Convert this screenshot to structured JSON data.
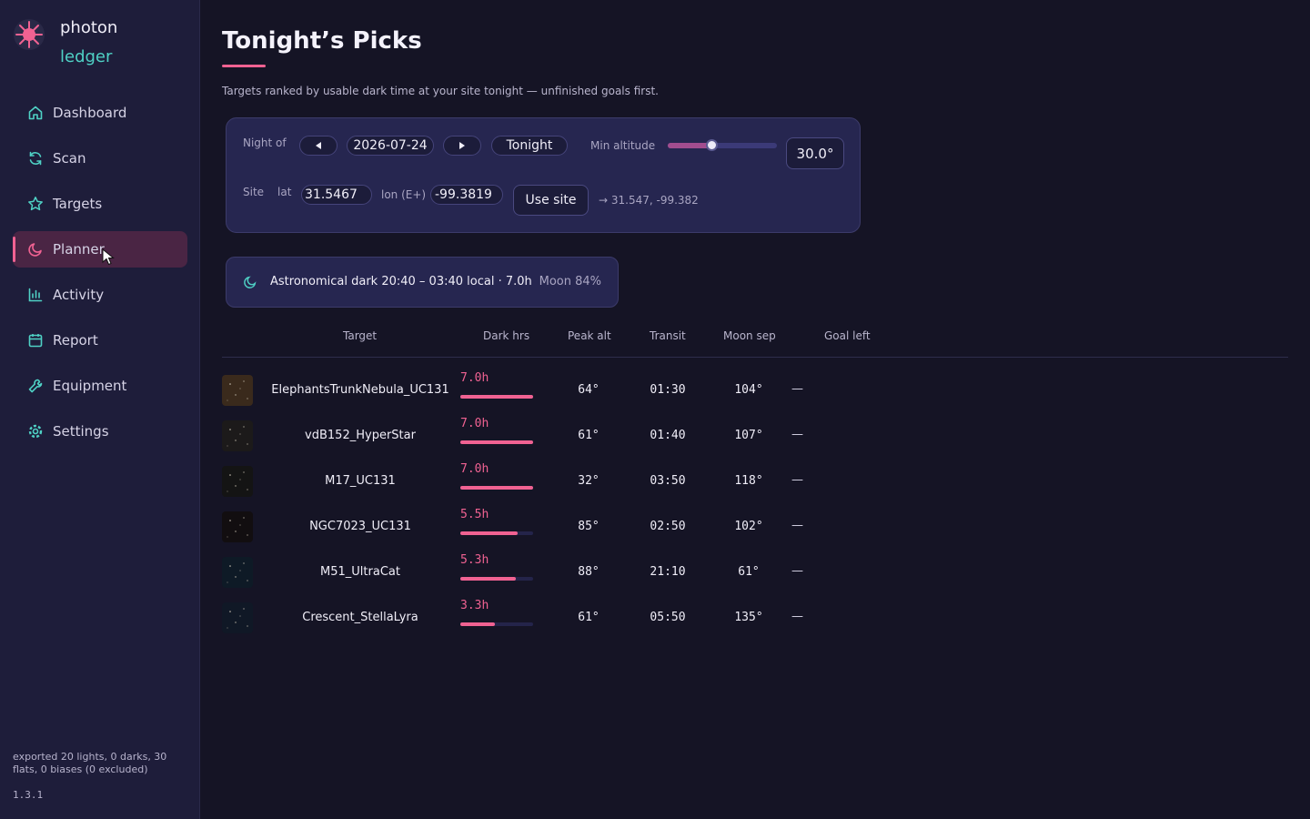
{
  "brand": {
    "name_line1": "photon",
    "name_line2": "ledger"
  },
  "nav": [
    {
      "id": "dashboard",
      "label": "Dashboard",
      "icon": "home-icon",
      "active": false
    },
    {
      "id": "scan",
      "label": "Scan",
      "icon": "refresh-icon",
      "active": false
    },
    {
      "id": "targets",
      "label": "Targets",
      "icon": "star-icon",
      "active": false
    },
    {
      "id": "planner",
      "label": "Planner",
      "icon": "moon-icon",
      "active": true
    },
    {
      "id": "activity",
      "label": "Activity",
      "icon": "bar-chart-icon",
      "active": false
    },
    {
      "id": "report",
      "label": "Report",
      "icon": "calendar-icon",
      "active": false
    },
    {
      "id": "equipment",
      "label": "Equipment",
      "icon": "wrench-icon",
      "active": false
    },
    {
      "id": "settings",
      "label": "Settings",
      "icon": "gear-icon",
      "active": false
    }
  ],
  "sidebar_footer": {
    "status": "exported 20 lights, 0 darks, 30 flats, 0 biases (0 excluded)",
    "version": "1.3.1"
  },
  "page": {
    "title": "Tonight’s Picks",
    "subtitle": "Targets ranked by usable dark time at your site tonight — unfinished goals first."
  },
  "controls": {
    "night_label": "Night of",
    "date": "2026-07-24",
    "tonight_label": "Tonight",
    "min_alt_label": "Min altitude",
    "min_alt_slider_fraction": 0.4,
    "min_alt_value": "30.0°",
    "site_label": "Site",
    "lat_label": "lat",
    "lat_value": "31.5467",
    "lon_label": "lon (E+)",
    "lon_value": "-99.3819",
    "use_site_label": "Use site",
    "coord_display": "→ 31.547, -99.382"
  },
  "darkness": {
    "summary": "Astronomical dark 20:40 – 03:40 local · 7.0h",
    "moon": "Moon 84%"
  },
  "table": {
    "headers": [
      "Target",
      "Dark hrs",
      "Peak alt",
      "Transit",
      "Moon sep",
      "Goal left"
    ],
    "rows": [
      {
        "name": "ElephantsTrunkNebula_UC131",
        "dark": "7.0h",
        "dark_fraction": 1.0,
        "peak_alt": "64°",
        "transit": "01:30",
        "moon_sep": "104°",
        "goal_left": "—",
        "thumb_color": "#3a2a1c"
      },
      {
        "name": "vdB152_HyperStar",
        "dark": "7.0h",
        "dark_fraction": 1.0,
        "peak_alt": "61°",
        "transit": "01:40",
        "moon_sep": "107°",
        "goal_left": "—",
        "thumb_color": "#1c1a1a"
      },
      {
        "name": "M17_UC131",
        "dark": "7.0h",
        "dark_fraction": 1.0,
        "peak_alt": "32°",
        "transit": "03:50",
        "moon_sep": "118°",
        "goal_left": "—",
        "thumb_color": "#141414"
      },
      {
        "name": "NGC7023_UC131",
        "dark": "5.5h",
        "dark_fraction": 0.786,
        "peak_alt": "85°",
        "transit": "02:50",
        "moon_sep": "102°",
        "goal_left": "—",
        "thumb_color": "#120e10"
      },
      {
        "name": "M51_UltraCat",
        "dark": "5.3h",
        "dark_fraction": 0.757,
        "peak_alt": "88°",
        "transit": "21:10",
        "moon_sep": "61°",
        "goal_left": "—",
        "thumb_color": "#0e1a26"
      },
      {
        "name": "Crescent_StellaLyra",
        "dark": "3.3h",
        "dark_fraction": 0.471,
        "peak_alt": "61°",
        "transit": "05:50",
        "moon_sep": "135°",
        "goal_left": "—",
        "thumb_color": "#101826"
      }
    ]
  },
  "colors": {
    "accent": "#f06292",
    "teal": "#4fd1c5",
    "sidebar_bg": "#1e1d3a",
    "panel_bg": "#262650"
  }
}
